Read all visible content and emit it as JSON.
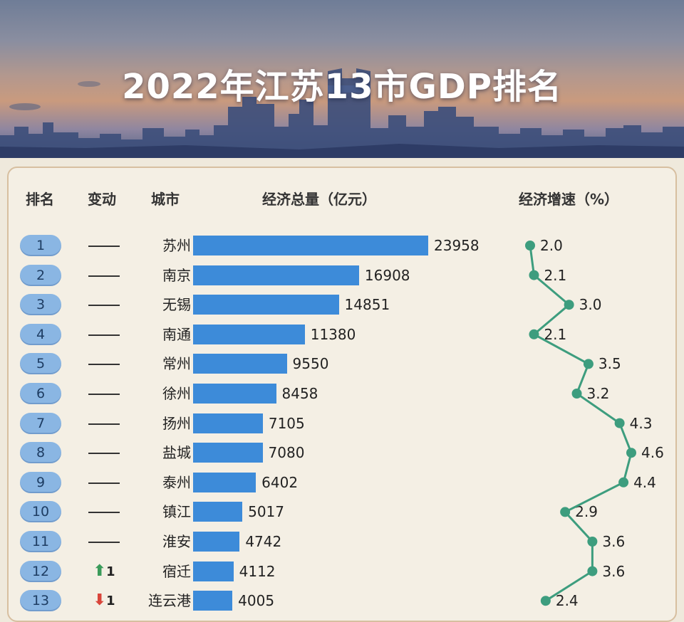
{
  "title": "2022年江苏13市GDP排名",
  "headers": {
    "rank": "排名",
    "change": "变动",
    "city": "城市",
    "gdp": "经济总量（亿元）",
    "growth": "经济增速（%）"
  },
  "colors": {
    "bar": "#3d8bd9",
    "line": "#3d9d7e",
    "up": "#3a9b5a",
    "down": "#d9453a",
    "pill": "#8ab6e3"
  },
  "chart_data": {
    "type": "bar",
    "title": "2022年江苏13市GDP排名",
    "categories": [
      "苏州",
      "南京",
      "无锡",
      "南通",
      "常州",
      "徐州",
      "扬州",
      "盐城",
      "泰州",
      "镇江",
      "淮安",
      "宿迁",
      "连云港"
    ],
    "series": [
      {
        "name": "经济总量（亿元）",
        "values": [
          23958,
          16908,
          14851,
          11380,
          9550,
          8458,
          7105,
          7080,
          6402,
          5017,
          4742,
          4112,
          4005
        ]
      },
      {
        "name": "经济增速（%）",
        "type": "line",
        "values": [
          2.0,
          2.1,
          3.0,
          2.1,
          3.5,
          3.2,
          4.3,
          4.6,
          4.4,
          2.9,
          3.6,
          3.6,
          2.4
        ]
      }
    ],
    "ranks": [
      "1",
      "2",
      "3",
      "4",
      "5",
      "6",
      "7",
      "8",
      "9",
      "10",
      "11",
      "12",
      "13"
    ],
    "rank_change": [
      {
        "dir": "none",
        "text": ""
      },
      {
        "dir": "none",
        "text": ""
      },
      {
        "dir": "none",
        "text": ""
      },
      {
        "dir": "none",
        "text": ""
      },
      {
        "dir": "none",
        "text": ""
      },
      {
        "dir": "none",
        "text": ""
      },
      {
        "dir": "none",
        "text": ""
      },
      {
        "dir": "none",
        "text": ""
      },
      {
        "dir": "none",
        "text": ""
      },
      {
        "dir": "none",
        "text": ""
      },
      {
        "dir": "none",
        "text": ""
      },
      {
        "dir": "up",
        "text": "1"
      },
      {
        "dir": "down",
        "text": "1"
      }
    ],
    "gdp_labels": [
      "23958",
      "16908",
      "14851",
      "11380",
      "9550",
      "8458",
      "7105",
      "7080",
      "6402",
      "5017",
      "4742",
      "4112",
      "4005"
    ],
    "growth_labels": [
      "2.0",
      "2.1",
      "3.0",
      "2.1",
      "3.5",
      "3.2",
      "4.3",
      "4.6",
      "4.4",
      "2.9",
      "3.6",
      "3.6",
      "2.4"
    ],
    "gdp_max": 23958,
    "growth_range": [
      2.0,
      4.6
    ],
    "grid": false
  }
}
